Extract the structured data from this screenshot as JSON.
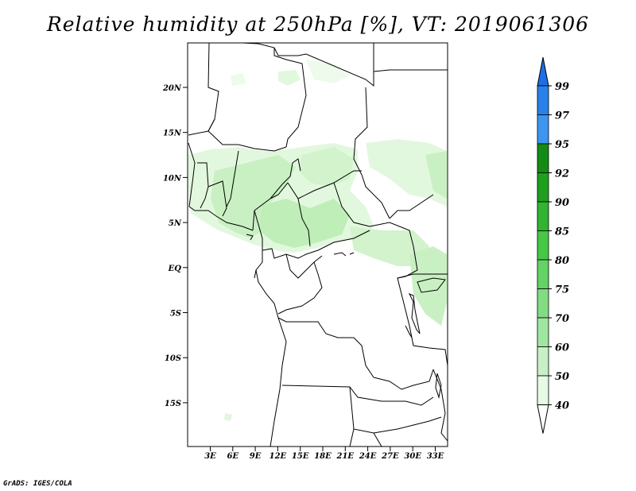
{
  "title": "Relative humidity at 250hPa [%], VT: 2019061306",
  "footer": "GrADS: IGES/COLA",
  "map": {
    "lat_labels": [
      "20N",
      "15N",
      "10N",
      "5N",
      "EQ",
      "5S",
      "10S",
      "15S"
    ],
    "lon_labels": [
      "3E",
      "6E",
      "9E",
      "12E",
      "15E",
      "18E",
      "21E",
      "24E",
      "27E",
      "30E",
      "33E"
    ],
    "fill_color_light": "#e6f9e2",
    "fill_color_mid": "#c8f0c0",
    "fill_color_dark": "#a8e6a0"
  },
  "colorbar": {
    "labels": [
      "99",
      "97",
      "95",
      "92",
      "90",
      "85",
      "80",
      "75",
      "70",
      "60",
      "50",
      "40"
    ],
    "colors": [
      "#1e6ee6",
      "#2882ea",
      "#3c96f0",
      "#148c14",
      "#1ea01e",
      "#32b432",
      "#46c846",
      "#64d264",
      "#82dc82",
      "#a0e6a0",
      "#c8f0c8",
      "#e6fae6",
      "#ffffff"
    ],
    "top_color": "#1e6ee6",
    "bottom_color": "#ffffff"
  }
}
